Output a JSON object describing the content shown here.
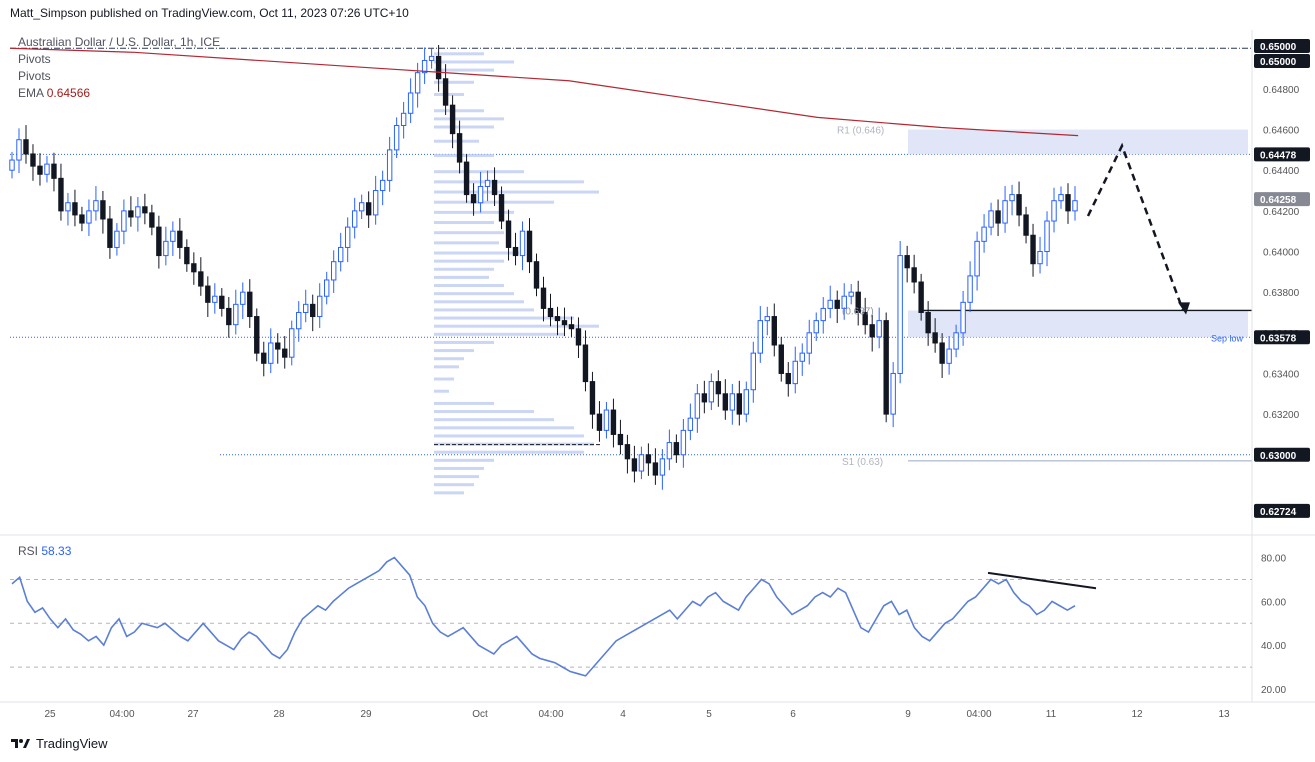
{
  "header": {
    "publisher": "Matt_Simpson published on TradingView.com, Oct 11, 2023 07:26 UTC+10",
    "symbol": "Australian Dollar / U.S. Dollar, 1h, ICE",
    "pivots_1": "Pivots",
    "pivots_2": "Pivots",
    "ema_label": "EMA",
    "ema_value": "0.64566",
    "rsi_label": "RSI",
    "rsi_value": "58.33"
  },
  "footer": {
    "brand": "TradingView"
  },
  "colors": {
    "up": "#2962ff",
    "down": "#131722",
    "ema": "#b22833",
    "rsi": "#5b7fd6",
    "zone": "#d8e0f5",
    "volume_profile": "#b9c8f0"
  },
  "chart_data": [
    {
      "type": "candlestick",
      "title": "Australian Dollar / U.S. Dollar, 1h, ICE",
      "ylim": [
        0.6262,
        0.6508
      ],
      "y_ticks": [
        0.648,
        0.646,
        0.644,
        0.642,
        0.64,
        0.638,
        0.636,
        0.634,
        0.632
      ],
      "y_tick_labels": [
        "0.64800",
        "0.64600",
        "0.64400",
        "0.64200",
        "0.64000",
        "0.63800",
        "0.63600",
        "0.63400",
        "0.63200"
      ],
      "x_tick_labels": [
        "25",
        "04:00",
        "27",
        "28",
        "29",
        "Oct",
        "04:00",
        "4",
        "5",
        "6",
        "9",
        "04:00",
        "11",
        "12",
        "13"
      ],
      "price_labels": [
        {
          "value": 0.65,
          "text": "0.65000",
          "style": "dark"
        },
        {
          "value": 0.65,
          "text": "0.65000",
          "style": "dark"
        },
        {
          "value": 0.64478,
          "text": "0.64478",
          "style": "dark"
        },
        {
          "value": 0.64258,
          "text": "0.64258",
          "style": "grey"
        },
        {
          "value": 0.63578,
          "text": "0.63578",
          "style": "dark"
        },
        {
          "value": 0.63,
          "text": "0.63000",
          "style": "dark"
        },
        {
          "value": 0.62724,
          "text": "0.62724",
          "style": "dark"
        }
      ],
      "ema": {
        "label": "EMA",
        "value": 0.64566,
        "points": [
          [
            0,
            0.65
          ],
          [
            0.1,
            0.6498
          ],
          [
            0.2,
            0.6494
          ],
          [
            0.3,
            0.649
          ],
          [
            0.35,
            0.6488
          ],
          [
            0.45,
            0.6484
          ],
          [
            0.55,
            0.6475
          ],
          [
            0.65,
            0.6466
          ],
          [
            0.75,
            0.6461
          ],
          [
            0.86,
            0.6457
          ]
        ]
      },
      "annotations": [
        {
          "text": "R1 (0.646)",
          "value": 0.646
        },
        {
          "text": "(0.637)",
          "value": 0.6371
        },
        {
          "text": "Sep low",
          "value": 0.63578
        },
        {
          "text": "S1 (0.63)",
          "value": 0.6297
        }
      ],
      "candles_close": [
        0.6445,
        0.6455,
        0.6448,
        0.6442,
        0.6438,
        0.6443,
        0.6436,
        0.642,
        0.6424,
        0.6418,
        0.6414,
        0.642,
        0.6425,
        0.6416,
        0.6402,
        0.641,
        0.642,
        0.6417,
        0.6422,
        0.6419,
        0.6412,
        0.6398,
        0.6405,
        0.641,
        0.6402,
        0.6394,
        0.639,
        0.6383,
        0.6375,
        0.6378,
        0.6372,
        0.6364,
        0.6374,
        0.638,
        0.6368,
        0.635,
        0.6345,
        0.6355,
        0.6352,
        0.6348,
        0.6362,
        0.637,
        0.6374,
        0.6368,
        0.6378,
        0.6386,
        0.6395,
        0.6402,
        0.6412,
        0.642,
        0.6424,
        0.6418,
        0.643,
        0.6435,
        0.645,
        0.6462,
        0.6468,
        0.6478,
        0.6488,
        0.6494,
        0.6496,
        0.6485,
        0.6472,
        0.6458,
        0.6444,
        0.6428,
        0.6424,
        0.6432,
        0.6435,
        0.6428,
        0.6415,
        0.6402,
        0.6398,
        0.641,
        0.6395,
        0.6382,
        0.6372,
        0.6368,
        0.6366,
        0.6364,
        0.6362,
        0.6354,
        0.6336,
        0.632,
        0.6312,
        0.6322,
        0.631,
        0.6305,
        0.6298,
        0.6292,
        0.63,
        0.6296,
        0.629,
        0.6298,
        0.6306,
        0.63,
        0.6312,
        0.6318,
        0.633,
        0.6326,
        0.6336,
        0.633,
        0.6322,
        0.633,
        0.632,
        0.6332,
        0.635,
        0.6366,
        0.6368,
        0.6354,
        0.634,
        0.6335,
        0.6346,
        0.635,
        0.636,
        0.6366,
        0.6372,
        0.6376,
        0.6372,
        0.6378,
        0.638,
        0.637,
        0.6364,
        0.6358,
        0.6366,
        0.632,
        0.634,
        0.6398,
        0.6392,
        0.6385,
        0.637,
        0.636,
        0.6355,
        0.6345,
        0.6352,
        0.636,
        0.6375,
        0.6388,
        0.6405,
        0.6412,
        0.642,
        0.6414,
        0.6425,
        0.6428,
        0.6418,
        0.6408,
        0.6394,
        0.64,
        0.6415,
        0.6425,
        0.6428,
        0.642,
        0.6425
      ]
    },
    {
      "type": "line",
      "title": "RSI",
      "value": 58.33,
      "ylim": [
        15,
        88
      ],
      "y_ticks": [
        80,
        60,
        40,
        20
      ],
      "y_tick_labels": [
        "80.00",
        "60.00",
        "40.00",
        "20.00"
      ],
      "bands": [
        70,
        50,
        30
      ],
      "values": [
        68,
        71,
        60,
        55,
        57,
        52,
        48,
        52,
        47,
        45,
        42,
        44,
        40,
        48,
        52,
        44,
        46,
        50,
        49,
        48,
        50,
        47,
        44,
        42,
        46,
        50,
        46,
        42,
        40,
        38,
        43,
        46,
        44,
        40,
        36,
        34,
        38,
        46,
        52,
        55,
        58,
        56,
        60,
        63,
        66,
        68,
        70,
        72,
        74,
        78,
        80,
        76,
        72,
        62,
        58,
        50,
        46,
        44,
        46,
        48,
        44,
        40,
        38,
        36,
        40,
        42,
        44,
        40,
        36,
        34,
        33,
        32,
        30,
        28,
        27,
        26,
        30,
        34,
        38,
        42,
        44,
        46,
        48,
        50,
        52,
        54,
        56,
        52,
        56,
        60,
        58,
        62,
        64,
        60,
        58,
        56,
        62,
        66,
        70,
        68,
        62,
        58,
        54,
        56,
        58,
        62,
        64,
        62,
        66,
        64,
        56,
        48,
        46,
        52,
        58,
        60,
        54,
        56,
        48,
        44,
        42,
        46,
        50,
        52,
        56,
        60,
        62,
        66,
        70,
        68,
        70,
        64,
        60,
        58,
        54,
        56,
        60,
        58,
        56,
        58
      ]
    }
  ]
}
